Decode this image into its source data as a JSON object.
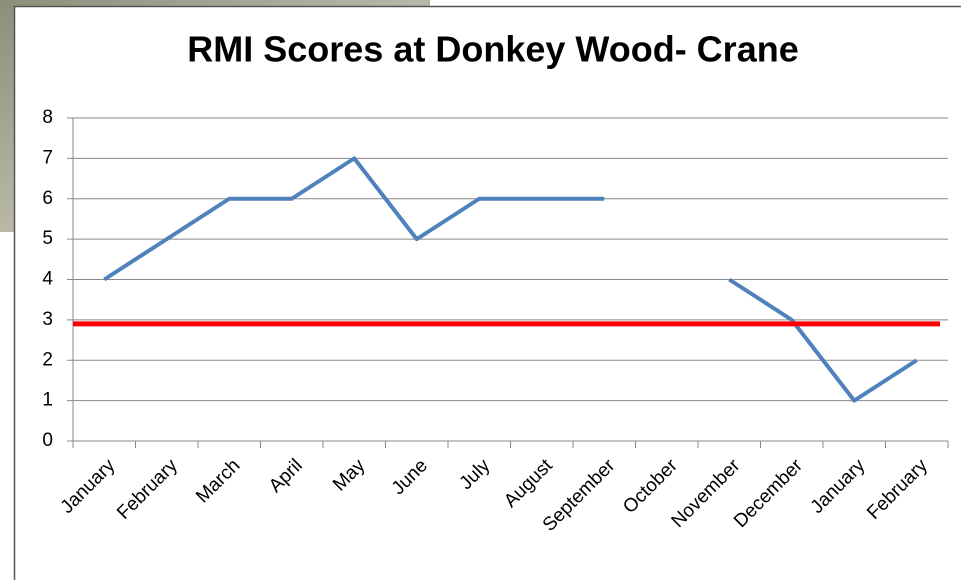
{
  "chart_data": {
    "type": "line",
    "title": "RMI Scores at Donkey Wood- Crane",
    "categories": [
      "January",
      "February",
      "March",
      "April",
      "May",
      "June",
      "July",
      "August",
      "September",
      "October",
      "November",
      "December",
      "January",
      "February"
    ],
    "series": [
      {
        "color": "#4f81bd",
        "values": [
          4,
          5,
          6,
          6,
          7,
          5,
          6,
          6,
          6,
          null,
          4,
          3,
          1,
          2
        ]
      }
    ],
    "reference_line": {
      "value": 2.9,
      "color": "#ff0000"
    },
    "ylim": [
      0,
      8
    ],
    "yticks": [
      0,
      1,
      2,
      3,
      4,
      5,
      6,
      7,
      8
    ],
    "grid": true
  }
}
